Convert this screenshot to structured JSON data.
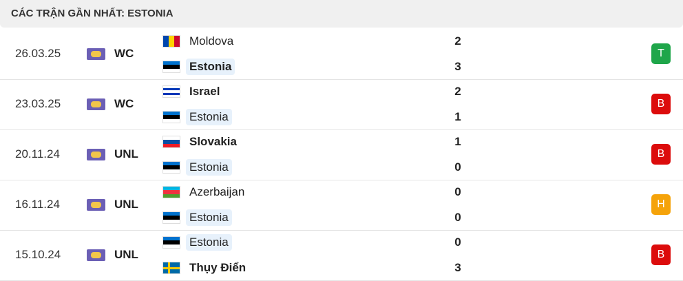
{
  "header": {
    "title": "CÁC TRẬN GẦN NHẤT: ESTONIA"
  },
  "matches": [
    {
      "date": "26.03.25",
      "competition": "WC",
      "home": {
        "name": "Moldova",
        "score": 2,
        "bold": false,
        "highlight": false,
        "flag": {
          "stripes": "v",
          "colors": [
            "#0046ae",
            "#ffd200",
            "#cc092f"
          ]
        }
      },
      "away": {
        "name": "Estonia",
        "score": 3,
        "bold": true,
        "highlight": true,
        "flag": {
          "stripes": "h",
          "colors": [
            "#0072ce",
            "#000000",
            "#ffffff"
          ]
        }
      },
      "result": "T",
      "result_color": "#1fa64a"
    },
    {
      "date": "23.03.25",
      "competition": "WC",
      "home": {
        "name": "Israel",
        "score": 2,
        "bold": true,
        "highlight": false,
        "flag": {
          "stripes": "h",
          "colors": [
            "#ffffff",
            "#0038b8",
            "#ffffff",
            "#0038b8",
            "#ffffff"
          ]
        }
      },
      "away": {
        "name": "Estonia",
        "score": 1,
        "bold": false,
        "highlight": true,
        "flag": {
          "stripes": "h",
          "colors": [
            "#0072ce",
            "#000000",
            "#ffffff"
          ]
        }
      },
      "result": "B",
      "result_color": "#dc0c0c"
    },
    {
      "date": "20.11.24",
      "competition": "UNL",
      "home": {
        "name": "Slovakia",
        "score": 1,
        "bold": true,
        "highlight": false,
        "flag": {
          "stripes": "h",
          "colors": [
            "#ffffff",
            "#0b4ea2",
            "#ee1c25"
          ]
        }
      },
      "away": {
        "name": "Estonia",
        "score": 0,
        "bold": false,
        "highlight": true,
        "flag": {
          "stripes": "h",
          "colors": [
            "#0072ce",
            "#000000",
            "#ffffff"
          ]
        }
      },
      "result": "B",
      "result_color": "#dc0c0c"
    },
    {
      "date": "16.11.24",
      "competition": "UNL",
      "home": {
        "name": "Azerbaijan",
        "score": 0,
        "bold": false,
        "highlight": false,
        "flag": {
          "stripes": "h",
          "colors": [
            "#00b5e2",
            "#ef3340",
            "#509e2f"
          ]
        }
      },
      "away": {
        "name": "Estonia",
        "score": 0,
        "bold": false,
        "highlight": true,
        "flag": {
          "stripes": "h",
          "colors": [
            "#0072ce",
            "#000000",
            "#ffffff"
          ]
        }
      },
      "result": "H",
      "result_color": "#f5a30a"
    },
    {
      "date": "15.10.24",
      "competition": "UNL",
      "home": {
        "name": "Estonia",
        "score": 0,
        "bold": false,
        "highlight": true,
        "flag": {
          "stripes": "h",
          "colors": [
            "#0072ce",
            "#000000",
            "#ffffff"
          ]
        }
      },
      "away": {
        "name": "Thụy Điển",
        "score": 3,
        "bold": true,
        "highlight": false,
        "flag": {
          "stripes": "cross",
          "colors": [
            "#006aa7",
            "#fecc00"
          ]
        }
      },
      "result": "B",
      "result_color": "#dc0c0c"
    }
  ]
}
